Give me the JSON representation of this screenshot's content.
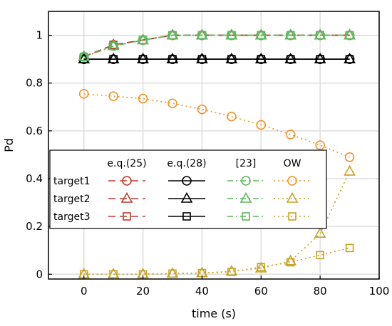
{
  "chart_data": {
    "type": "line",
    "title": "",
    "xlabel": "time (s)",
    "ylabel": "Pd",
    "xlim": [
      -12,
      100
    ],
    "ylim": [
      -0.02,
      1.1
    ],
    "xticks": [
      0,
      20,
      40,
      60,
      80,
      100
    ],
    "yticks": [
      0,
      0.2,
      0.4,
      0.6,
      0.8,
      1
    ],
    "ytick_labels": [
      "0",
      "0.2",
      "0.4",
      "0.6",
      "0.8",
      "1"
    ],
    "grid": true,
    "legend_placement": "center-left",
    "x": [
      0,
      10,
      20,
      30,
      40,
      50,
      60,
      70,
      80,
      90
    ],
    "legend": {
      "columns": [
        "e.q.(25)",
        "e.q.(28)",
        "[23]",
        "OW"
      ],
      "rows": [
        "target1",
        "target2",
        "target3"
      ]
    },
    "series": [
      {
        "method": "eq25",
        "target": "target1",
        "color": "#c0392b",
        "dash": "dashed",
        "marker": "circle",
        "values": [
          0.91,
          0.96,
          0.98,
          1.0,
          1.0,
          1.0,
          1.0,
          1.0,
          1.0,
          1.0
        ]
      },
      {
        "method": "eq25",
        "target": "target2",
        "color": "#c0392b",
        "dash": "dashed",
        "marker": "triangle",
        "values": [
          0.91,
          0.96,
          0.98,
          1.0,
          1.0,
          1.0,
          1.0,
          1.0,
          1.0,
          1.0
        ]
      },
      {
        "method": "eq25",
        "target": "target3",
        "color": "#c0392b",
        "dash": "dashed",
        "marker": "square",
        "values": [
          0.91,
          0.96,
          0.98,
          1.0,
          1.0,
          1.0,
          1.0,
          1.0,
          1.0,
          1.0
        ]
      },
      {
        "method": "eq28",
        "target": "target1",
        "color": "#000000",
        "dash": "solid",
        "marker": "circle",
        "values": [
          0.9,
          0.9,
          0.9,
          0.9,
          0.9,
          0.9,
          0.9,
          0.9,
          0.9,
          0.9
        ]
      },
      {
        "method": "eq28",
        "target": "target2",
        "color": "#000000",
        "dash": "solid",
        "marker": "triangle",
        "values": [
          0.9,
          0.9,
          0.9,
          0.9,
          0.9,
          0.9,
          0.9,
          0.9,
          0.9,
          0.9
        ]
      },
      {
        "method": "eq28",
        "target": "target3",
        "color": "#000000",
        "dash": "solid",
        "marker": "square",
        "values": [
          0.9,
          0.9,
          0.9,
          0.9,
          0.9,
          0.9,
          0.9,
          0.9,
          0.9,
          0.9
        ]
      },
      {
        "method": "ref23",
        "target": "target1",
        "color": "#5cb85c",
        "dash": "dashdot",
        "marker": "circle",
        "values": [
          0.91,
          0.955,
          0.98,
          1.0,
          1.0,
          1.0,
          1.0,
          1.0,
          1.0,
          1.0
        ]
      },
      {
        "method": "ref23",
        "target": "target2",
        "color": "#5cb85c",
        "dash": "dashdot",
        "marker": "triangle",
        "values": [
          0.91,
          0.955,
          0.98,
          1.0,
          1.0,
          1.0,
          1.0,
          1.0,
          1.0,
          1.0
        ]
      },
      {
        "method": "ref23",
        "target": "target3",
        "color": "#5cb85c",
        "dash": "dashdot",
        "marker": "square",
        "values": [
          0.91,
          0.955,
          0.98,
          1.0,
          1.0,
          1.0,
          1.0,
          1.0,
          1.0,
          1.0
        ]
      },
      {
        "method": "OW",
        "target": "target1",
        "color": "#f0932b",
        "dash": "dotted",
        "marker": "circle",
        "values": [
          0.755,
          0.745,
          0.735,
          0.715,
          0.69,
          0.66,
          0.625,
          0.585,
          0.54,
          0.49
        ]
      },
      {
        "method": "OW",
        "target": "target2",
        "color": "#c9a227",
        "dash": "dotted",
        "marker": "triangle",
        "values": [
          0.0,
          0.0,
          0.0,
          0.003,
          0.005,
          0.012,
          0.025,
          0.055,
          0.17,
          0.43
        ]
      },
      {
        "method": "OW",
        "target": "target3",
        "color": "#c9a227",
        "dash": "dotted",
        "marker": "square",
        "values": [
          0.0,
          0.0,
          0.0,
          0.003,
          0.005,
          0.01,
          0.03,
          0.05,
          0.08,
          0.11
        ]
      }
    ]
  }
}
